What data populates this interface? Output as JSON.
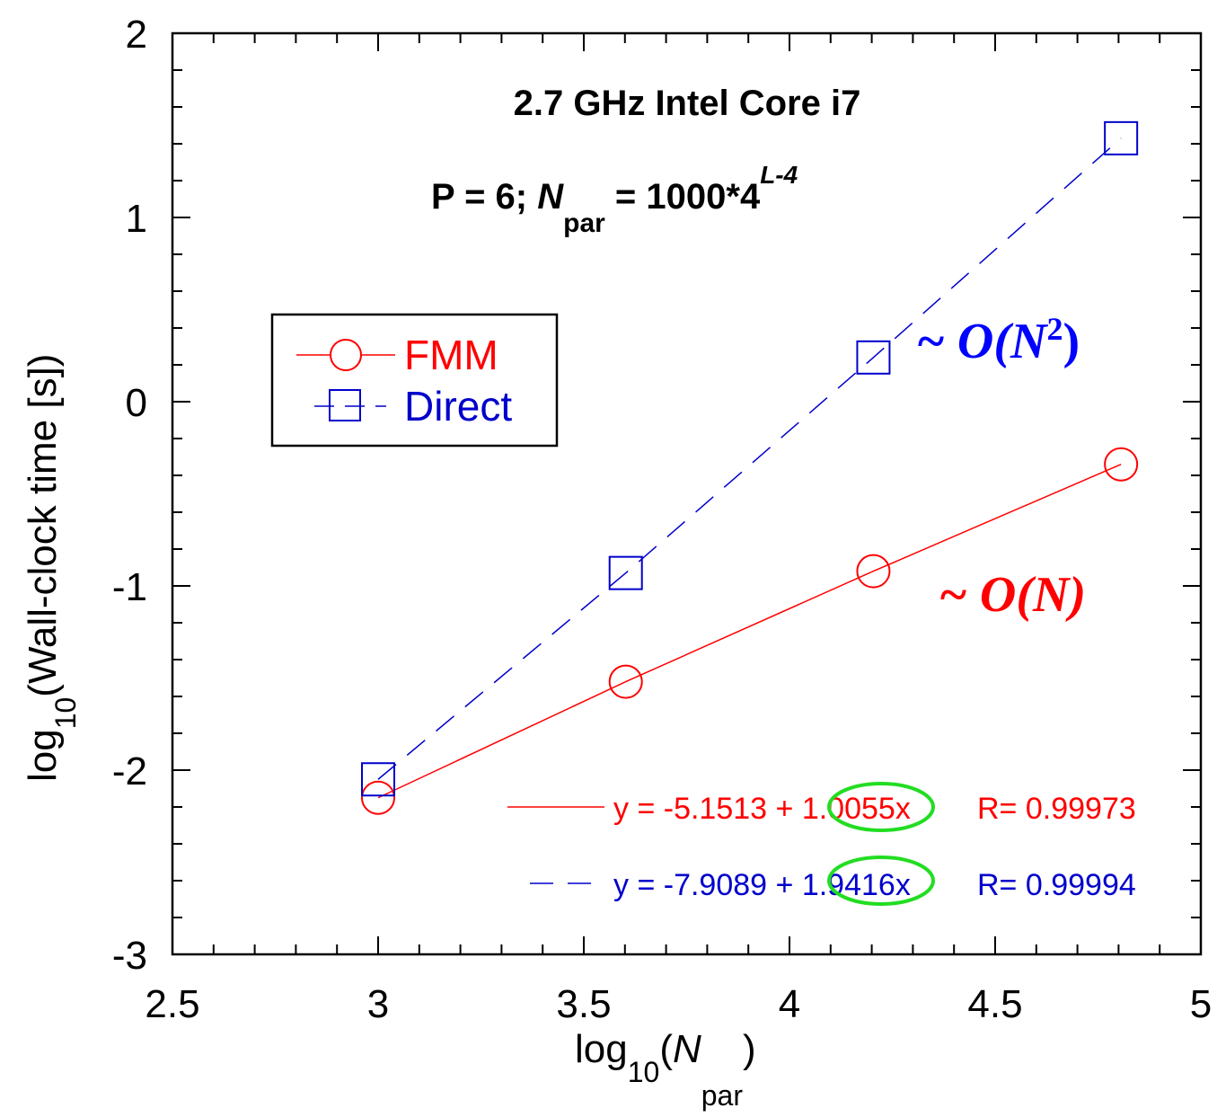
{
  "chart_data": {
    "type": "line",
    "title_line1": "2.7 GHz Intel Core i7",
    "title_line2": {
      "p": "P = 6; ",
      "n": "N",
      "n_sub": "par",
      "eq": " = 1000*4",
      "exp": "L-4"
    },
    "ylabel": {
      "pre": "log",
      "sub": "10",
      "post": "(Wall-clock time [s])"
    },
    "xlabel": {
      "pre": "log",
      "sub": "10",
      "paren_open": "(",
      "n": "N",
      "n_sub": "par",
      "paren_close": ")"
    },
    "xlim": [
      2.5,
      5
    ],
    "ylim": [
      -3,
      2
    ],
    "x_ticks": [
      2.5,
      3,
      3.5,
      4,
      4.5,
      5
    ],
    "x_tick_labels": [
      "2.5",
      "3",
      "3.5",
      "4",
      "4.5",
      "5"
    ],
    "y_ticks": [
      -3,
      -2,
      -1,
      0,
      1,
      2
    ],
    "y_tick_labels": [
      "-3",
      "-2",
      "-1",
      "0",
      "1",
      "2"
    ],
    "grid": false,
    "legend_position": "upper-left",
    "series": [
      {
        "name": "FMM",
        "color": "#ff0000",
        "marker": "circle",
        "line": "solid",
        "x": [
          3.0,
          3.602,
          4.204,
          4.806
        ],
        "y": [
          -2.15,
          -1.52,
          -0.92,
          -0.34
        ]
      },
      {
        "name": "Direct",
        "color": "#0000cc",
        "marker": "square",
        "line": "dashed",
        "x": [
          3.0,
          3.602,
          4.204,
          4.806
        ],
        "y": [
          -2.05,
          -0.93,
          0.24,
          1.43
        ]
      }
    ],
    "annotations": {
      "direct_scaling": {
        "text": "~ O(N",
        "sup": "2",
        "close": ")",
        "color": "#0000ff"
      },
      "fmm_scaling": {
        "text": "~ O(N)",
        "color": "#ff0000"
      },
      "fit_fmm": {
        "pre": "y = -5.1513 + ",
        "highlight": "1.0055",
        "post": "x",
        "r": "R= 0.99973",
        "color": "#ff0000"
      },
      "fit_direct": {
        "pre": "y = -7.9089 + ",
        "highlight": "1.9416",
        "post": "x",
        "r": "R= 0.99994",
        "color": "#0000cc"
      },
      "highlight_color": "#22dd22"
    }
  }
}
